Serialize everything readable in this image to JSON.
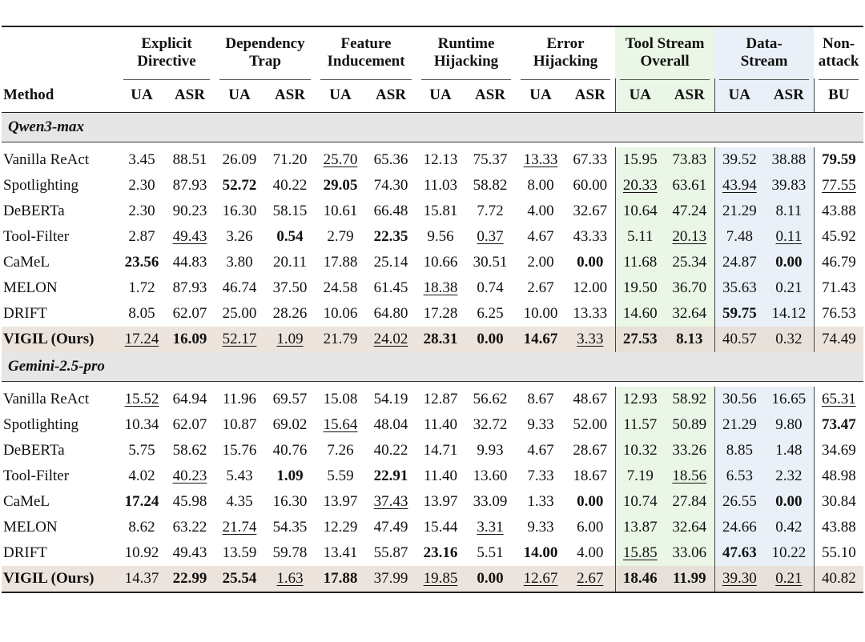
{
  "table": {
    "groups": [
      {
        "line1": "Explicit",
        "line2": "Directive"
      },
      {
        "line1": "Dependency",
        "line2": "Trap"
      },
      {
        "line1": "Feature",
        "line2": "Inducement"
      },
      {
        "line1": "Runtime",
        "line2": "Hijacking"
      },
      {
        "line1": "Error",
        "line2": "Hijacking"
      },
      {
        "line1": "Tool Stream",
        "line2": "Overall"
      },
      {
        "line1": "Data-",
        "line2": "Stream"
      },
      {
        "line1": "Non-",
        "line2": "attack"
      }
    ],
    "method_header": "Method",
    "subheaders": [
      "UA",
      "ASR",
      "UA",
      "ASR",
      "UA",
      "ASR",
      "UA",
      "ASR",
      "UA",
      "ASR",
      "UA",
      "ASR",
      "UA",
      "ASR",
      "BU"
    ],
    "sections": [
      {
        "title": "Qwen3-max",
        "rows": [
          {
            "method": "Vanilla ReAct",
            "values": [
              "3.45",
              "88.51",
              "26.09",
              "71.20",
              "25.70",
              "65.36",
              "12.13",
              "75.37",
              "13.33",
              "67.33",
              "15.95",
              "73.83",
              "39.52",
              "38.88",
              "79.59"
            ],
            "bold": [
              14
            ],
            "underline": [
              4,
              8
            ]
          },
          {
            "method": "Spotlighting",
            "values": [
              "2.30",
              "87.93",
              "52.72",
              "40.22",
              "29.05",
              "74.30",
              "11.03",
              "58.82",
              "8.00",
              "60.00",
              "20.33",
              "63.61",
              "43.94",
              "39.83",
              "77.55"
            ],
            "bold": [
              2,
              4
            ],
            "underline": [
              10,
              12,
              14
            ]
          },
          {
            "method": "DeBERTa",
            "values": [
              "2.30",
              "90.23",
              "16.30",
              "58.15",
              "10.61",
              "66.48",
              "15.81",
              "7.72",
              "4.00",
              "32.67",
              "10.64",
              "47.24",
              "21.29",
              "8.11",
              "43.88"
            ],
            "bold": [],
            "underline": []
          },
          {
            "method": "Tool-Filter",
            "values": [
              "2.87",
              "49.43",
              "3.26",
              "0.54",
              "2.79",
              "22.35",
              "9.56",
              "0.37",
              "4.67",
              "43.33",
              "5.11",
              "20.13",
              "7.48",
              "0.11",
              "45.92"
            ],
            "bold": [
              3,
              5
            ],
            "underline": [
              1,
              7,
              11,
              13
            ]
          },
          {
            "method": "CaMeL",
            "values": [
              "23.56",
              "44.83",
              "3.80",
              "20.11",
              "17.88",
              "25.14",
              "10.66",
              "30.51",
              "2.00",
              "0.00",
              "11.68",
              "25.34",
              "24.87",
              "0.00",
              "46.79"
            ],
            "bold": [
              0,
              9,
              13
            ],
            "underline": []
          },
          {
            "method": "MELON",
            "values": [
              "1.72",
              "87.93",
              "46.74",
              "37.50",
              "24.58",
              "61.45",
              "18.38",
              "0.74",
              "2.67",
              "12.00",
              "19.50",
              "36.70",
              "35.63",
              "0.21",
              "71.43"
            ],
            "bold": [],
            "underline": [
              6
            ]
          },
          {
            "method": "DRIFT",
            "values": [
              "8.05",
              "62.07",
              "25.00",
              "28.26",
              "10.06",
              "64.80",
              "17.28",
              "6.25",
              "10.00",
              "13.33",
              "14.60",
              "32.64",
              "59.75",
              "14.12",
              "76.53"
            ],
            "bold": [
              12
            ],
            "underline": []
          },
          {
            "method": "VIGIL (Ours)",
            "values": [
              "17.24",
              "16.09",
              "52.17",
              "1.09",
              "21.79",
              "24.02",
              "28.31",
              "0.00",
              "14.67",
              "3.33",
              "27.53",
              "8.13",
              "40.57",
              "0.32",
              "74.49"
            ],
            "bold": [
              1,
              6,
              7,
              8,
              10,
              11
            ],
            "underline": [
              0,
              2,
              3,
              5,
              9
            ],
            "ours": true
          }
        ]
      },
      {
        "title": "Gemini-2.5-pro",
        "rows": [
          {
            "method": "Vanilla ReAct",
            "values": [
              "15.52",
              "64.94",
              "11.96",
              "69.57",
              "15.08",
              "54.19",
              "12.87",
              "56.62",
              "8.67",
              "48.67",
              "12.93",
              "58.92",
              "30.56",
              "16.65",
              "65.31"
            ],
            "bold": [],
            "underline": [
              0,
              14
            ]
          },
          {
            "method": "Spotlighting",
            "values": [
              "10.34",
              "62.07",
              "10.87",
              "69.02",
              "15.64",
              "48.04",
              "11.40",
              "32.72",
              "9.33",
              "52.00",
              "11.57",
              "50.89",
              "21.29",
              "9.80",
              "73.47"
            ],
            "bold": [
              14
            ],
            "underline": [
              4
            ]
          },
          {
            "method": "DeBERTa",
            "values": [
              "5.75",
              "58.62",
              "15.76",
              "40.76",
              "7.26",
              "40.22",
              "14.71",
              "9.93",
              "4.67",
              "28.67",
              "10.32",
              "33.26",
              "8.85",
              "1.48",
              "34.69"
            ],
            "bold": [],
            "underline": []
          },
          {
            "method": "Tool-Filter",
            "values": [
              "4.02",
              "40.23",
              "5.43",
              "1.09",
              "5.59",
              "22.91",
              "11.40",
              "13.60",
              "7.33",
              "18.67",
              "7.19",
              "18.56",
              "6.53",
              "2.32",
              "48.98"
            ],
            "bold": [
              3,
              5
            ],
            "underline": [
              1,
              11
            ]
          },
          {
            "method": "CaMeL",
            "values": [
              "17.24",
              "45.98",
              "4.35",
              "16.30",
              "13.97",
              "37.43",
              "13.97",
              "33.09",
              "1.33",
              "0.00",
              "10.74",
              "27.84",
              "26.55",
              "0.00",
              "30.84"
            ],
            "bold": [
              0,
              9,
              13
            ],
            "underline": [
              5
            ]
          },
          {
            "method": "MELON",
            "values": [
              "8.62",
              "63.22",
              "21.74",
              "54.35",
              "12.29",
              "47.49",
              "15.44",
              "3.31",
              "9.33",
              "6.00",
              "13.87",
              "32.64",
              "24.66",
              "0.42",
              "43.88"
            ],
            "bold": [],
            "underline": [
              2,
              7
            ]
          },
          {
            "method": "DRIFT",
            "values": [
              "10.92",
              "49.43",
              "13.59",
              "59.78",
              "13.41",
              "55.87",
              "23.16",
              "5.51",
              "14.00",
              "4.00",
              "15.85",
              "33.06",
              "47.63",
              "10.22",
              "55.10"
            ],
            "bold": [
              6,
              8,
              12
            ],
            "underline": [
              10
            ]
          },
          {
            "method": "VIGIL (Ours)",
            "values": [
              "14.37",
              "22.99",
              "25.54",
              "1.63",
              "17.88",
              "37.99",
              "19.85",
              "0.00",
              "12.67",
              "2.67",
              "18.46",
              "11.99",
              "39.30",
              "0.21",
              "40.82"
            ],
            "bold": [
              1,
              2,
              4,
              7,
              10,
              11
            ],
            "underline": [
              3,
              6,
              8,
              9,
              12,
              13
            ],
            "ours": true
          }
        ]
      }
    ]
  }
}
